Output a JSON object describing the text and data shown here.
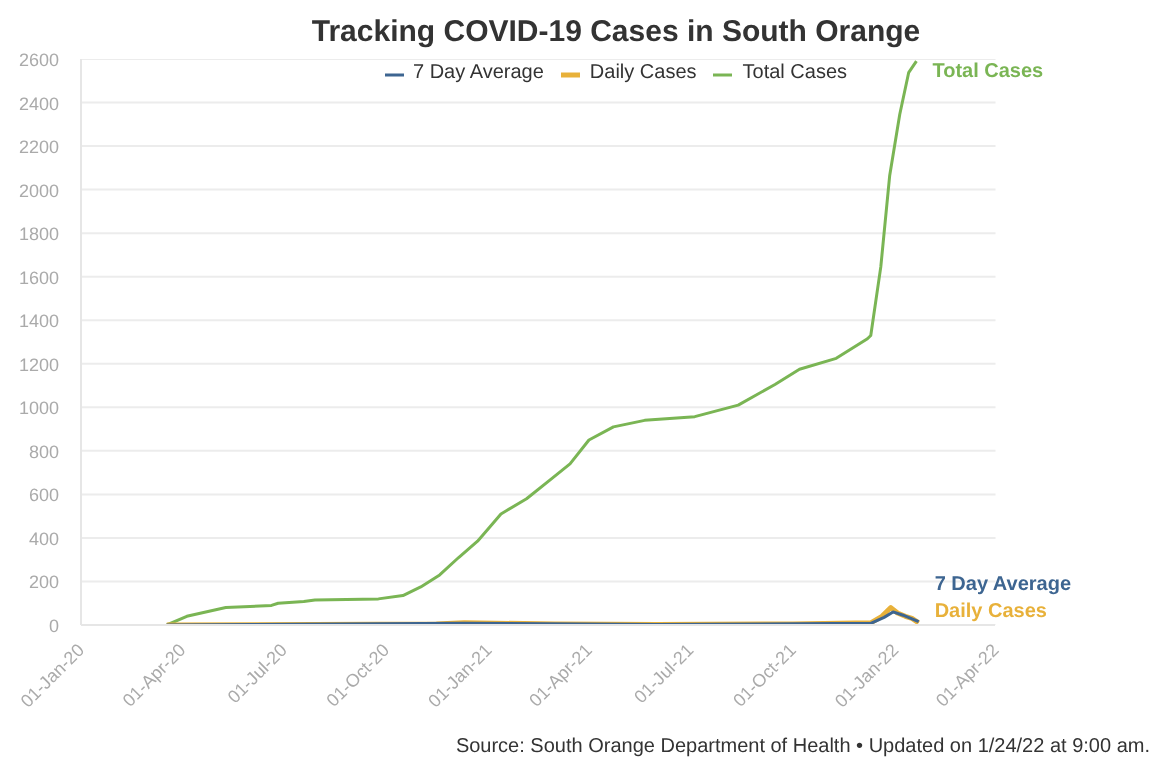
{
  "chart_data": {
    "type": "line",
    "title": "Tracking COVID-19 Cases in South Orange",
    "xlim": [
      "2020-01-01",
      "2022-04-01"
    ],
    "xticks": [
      {
        "value": "2020-01-01",
        "label": "01-Jan-20"
      },
      {
        "value": "2020-04-01",
        "label": "01-Apr-20"
      },
      {
        "value": "2020-07-01",
        "label": "01-Jul-20"
      },
      {
        "value": "2020-10-01",
        "label": "01-Oct-20"
      },
      {
        "value": "2021-01-01",
        "label": "01-Jan-21"
      },
      {
        "value": "2021-04-01",
        "label": "01-Apr-21"
      },
      {
        "value": "2021-07-01",
        "label": "01-Jul-21"
      },
      {
        "value": "2021-10-01",
        "label": "01-Oct-21"
      },
      {
        "value": "2022-01-01",
        "label": "01-Jan-22"
      },
      {
        "value": "2022-04-01",
        "label": "01-Apr-22"
      }
    ],
    "ylim": [
      0,
      2600
    ],
    "yticks": [
      0,
      200,
      400,
      600,
      800,
      1000,
      1200,
      1400,
      1600,
      1800,
      2000,
      2200,
      2400,
      2600
    ],
    "grid": "y",
    "legend": "top",
    "marker": "none",
    "line_style": "solid",
    "series": [
      {
        "name": "7 Day Average",
        "color": "#3d6591",
        "x": [
          "2020-03-18",
          "2020-12-10",
          "2021-06-01",
          "2021-12-10",
          "2021-12-22",
          "2021-12-30",
          "2022-01-08",
          "2022-01-22"
        ],
        "values": [
          0,
          8,
          2,
          8,
          35,
          60,
          45,
          15
        ]
      },
      {
        "name": "Daily Cases",
        "color": "#e8b13a",
        "x": [
          "2020-03-18",
          "2020-11-15",
          "2020-12-10",
          "2021-03-01",
          "2021-06-01",
          "2021-10-01",
          "2021-12-10",
          "2021-12-20",
          "2021-12-28",
          "2022-01-03",
          "2022-01-10",
          "2022-01-16",
          "2022-01-22"
        ],
        "values": [
          0,
          5,
          10,
          5,
          2,
          5,
          10,
          40,
          80,
          55,
          40,
          30,
          10
        ]
      },
      {
        "name": "Total Cases",
        "color": "#7ab554",
        "x": [
          "2020-03-18",
          "2020-04-05",
          "2020-05-10",
          "2020-06-20",
          "2020-06-26",
          "2020-07-19",
          "2020-07-29",
          "2020-09-24",
          "2020-10-16",
          "2020-11-01",
          "2020-11-18",
          "2020-12-05",
          "2020-12-22",
          "2021-01-02",
          "2021-01-12",
          "2021-02-04",
          "2021-02-26",
          "2021-03-15",
          "2021-04-01",
          "2021-04-23",
          "2021-05-21",
          "2021-07-05",
          "2021-08-13",
          "2021-09-15",
          "2021-10-07",
          "2021-11-09",
          "2021-12-07",
          "2021-12-10",
          "2021-12-19",
          "2021-12-27",
          "2022-01-05",
          "2022-01-13",
          "2022-01-20"
        ],
        "values": [
          0,
          40,
          80,
          90,
          100,
          108,
          115,
          120,
          135,
          175,
          230,
          310,
          385,
          450,
          510,
          580,
          670,
          740,
          850,
          910,
          940,
          957,
          1010,
          1105,
          1175,
          1225,
          1315,
          1330,
          1645,
          2065,
          2345,
          2537,
          2590
        ]
      }
    ],
    "annotations": [
      "Source: South Orange Department of Health • Updated on 1/24/22 at 9:00 am."
    ]
  }
}
